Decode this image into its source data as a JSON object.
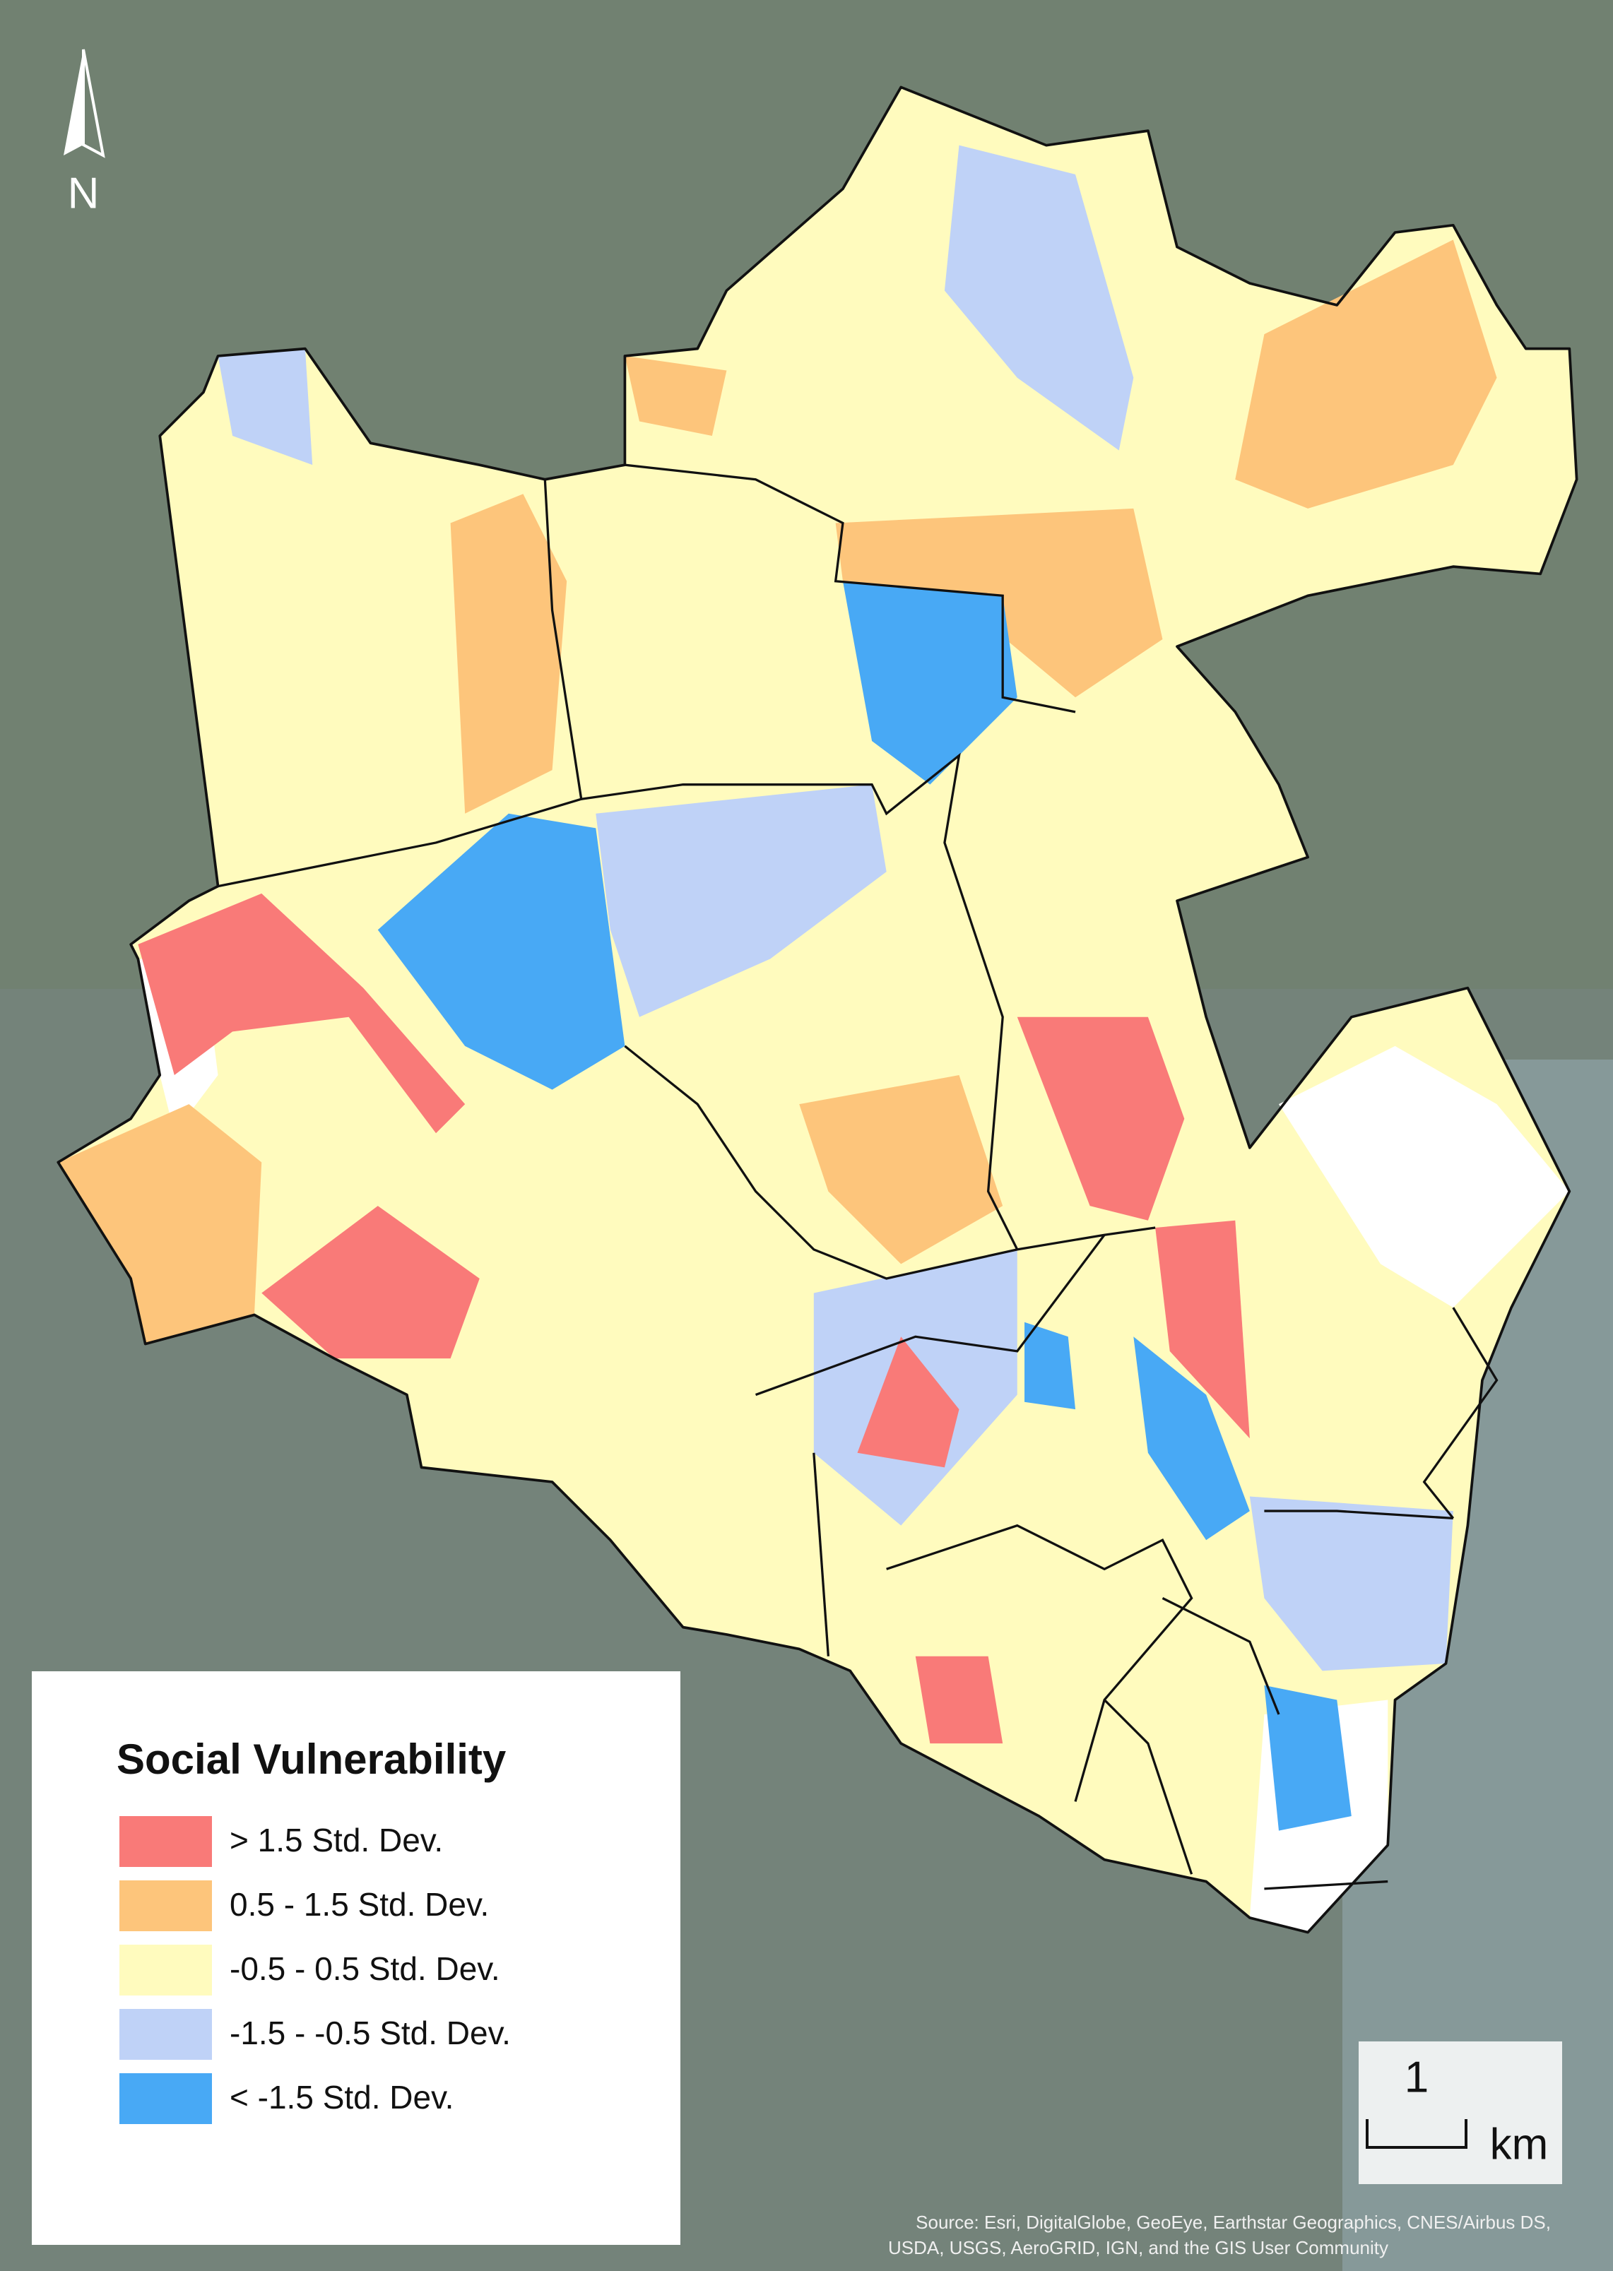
{
  "north_arrow": {
    "label": "N"
  },
  "legend": {
    "title": "Social Vulnerability",
    "items": [
      {
        "label": "> 1.5 Std. Dev.",
        "color": "#f97a78"
      },
      {
        "label": "0.5 - 1.5 Std. Dev.",
        "color": "#fdc57b"
      },
      {
        "label": "-0.5 - 0.5 Std. Dev.",
        "color": "#fffbbe"
      },
      {
        "label": "-1.5 - -0.5 Std. Dev.",
        "color": "#bfd2f7"
      },
      {
        "label": "< -1.5 Std. Dev.",
        "color": "#48a9f5"
      }
    ]
  },
  "scale_bar": {
    "value": 1,
    "unit": "km"
  },
  "attribution": [
    "Source: Esri, DigitalGlobe, GeoEye, Earthstar Geographics, CNES/Airbus DS,",
    "USDA, USGS, AeroGRID, IGN, and the GIS User Community"
  ]
}
